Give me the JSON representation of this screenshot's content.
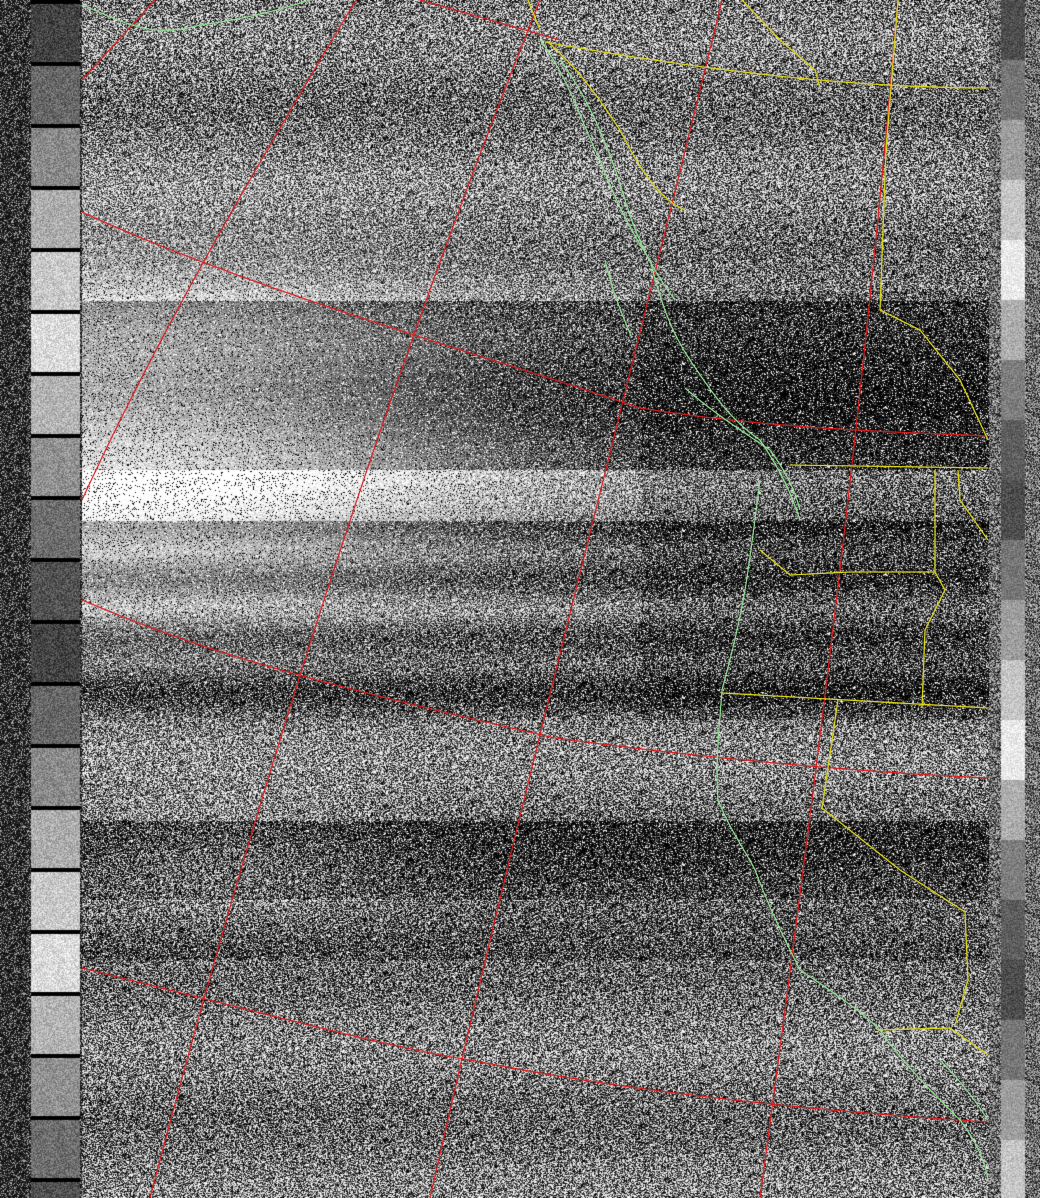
{
  "image": {
    "kind": "NOAA APT weather satellite image with map overlay",
    "colors": {
      "background": "#000000",
      "graticule": "#e01b1b",
      "coastline": "#8fe08f",
      "borders": "#d8d21a"
    }
  }
}
